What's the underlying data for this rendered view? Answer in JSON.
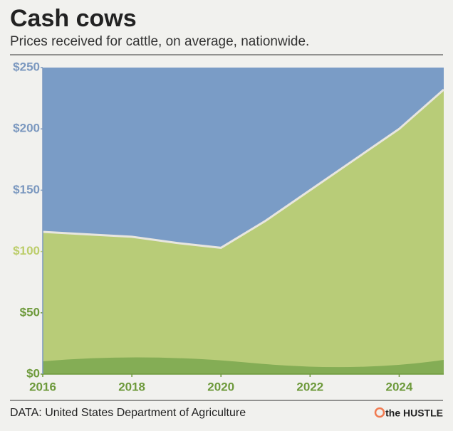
{
  "chart_data": {
    "type": "area",
    "title": "Cash cows",
    "subtitle": "Prices received for cattle, on average, nationwide.",
    "source": "DATA: United States Department of Agriculture",
    "brand": "the HUSTLE",
    "x": [
      2016,
      2017,
      2018,
      2019,
      2020,
      2021,
      2022,
      2023,
      2024,
      2025
    ],
    "series": [
      {
        "values": [
          116,
          114,
          112,
          107,
          103,
          125,
          150,
          175,
          200,
          232
        ],
        "color": "#b8cc78"
      }
    ],
    "xlim": [
      2016,
      2025
    ],
    "xticks": [
      2016,
      2018,
      2020,
      2022,
      2024
    ],
    "ylim": [
      0,
      250
    ],
    "yticks": [
      {
        "value": 0,
        "label": "$0"
      },
      {
        "value": 50,
        "label": "$50"
      },
      {
        "value": 100,
        "label": "$100"
      },
      {
        "value": 150,
        "label": "$150"
      },
      {
        "value": 200,
        "label": "$200"
      },
      {
        "value": 250,
        "label": "$250"
      }
    ],
    "ytick_colors": [
      "#6e9a3c",
      "#6e9a3c",
      "#bccd6a",
      "#7b98bf",
      "#7b98bf",
      "#7b98bf"
    ],
    "xtick_color": "#6e9a3c",
    "sky_color": "#7a9cc6"
  }
}
